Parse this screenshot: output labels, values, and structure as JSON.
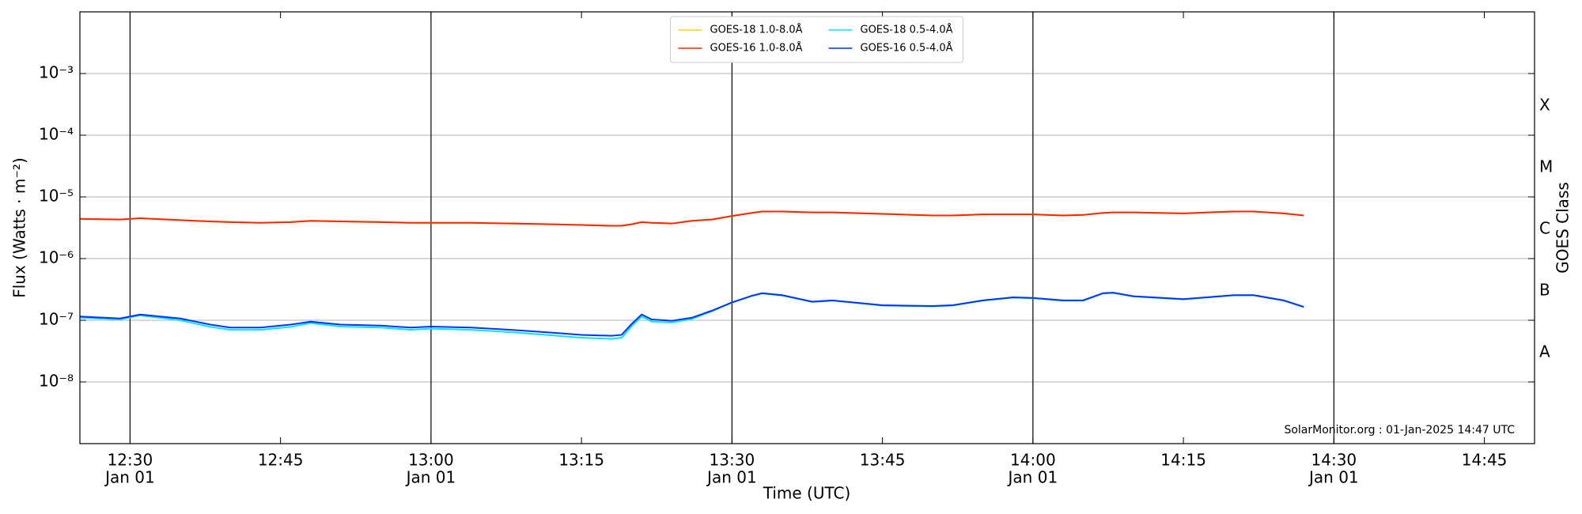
{
  "chart_data": {
    "type": "line",
    "xlabel": "Time (UTC)",
    "ylabel": "Flux (Watts · m⁻²)",
    "y2label": "GOES Class",
    "annotation": "SolarMonitor.org : 01-Jan-2025 14:47 UTC",
    "yscale": "log",
    "grid": true,
    "legend": "upper center",
    "xlim": [
      "12:25",
      "14:50"
    ],
    "xticks": [
      {
        "value": "12:30",
        "label": [
          "12:30",
          "Jan 01"
        ]
      },
      "12:45",
      {
        "value": "13:00",
        "label": [
          "13:00",
          "Jan 01"
        ]
      },
      "13:15",
      {
        "value": "13:30",
        "label": [
          "13:30",
          "Jan 01"
        ]
      },
      "13:45",
      {
        "value": "14:00",
        "label": [
          "14:00",
          "Jan 01"
        ]
      },
      "14:15",
      {
        "value": "14:30",
        "label": [
          "14:30",
          "Jan 01"
        ]
      },
      "14:45"
    ],
    "vlines": [
      "12:30",
      "13:00",
      "13:30",
      "14:00",
      "14:30"
    ],
    "ylim": [
      1e-09,
      0.01
    ],
    "yticks": [
      {
        "value": 1e-08,
        "label": "10⁻⁸"
      },
      {
        "value": 1e-07,
        "label": "10⁻⁷"
      },
      {
        "value": 1e-06,
        "label": "10⁻⁶"
      },
      {
        "value": 1e-05,
        "label": "10⁻⁵"
      },
      {
        "value": 0.0001,
        "label": "10⁻⁴"
      },
      {
        "value": 0.001,
        "label": "10⁻³"
      }
    ],
    "y2lim": [
      1e-09,
      0.01
    ],
    "y2ticks": [
      {
        "value": 3e-08,
        "label": "A"
      },
      {
        "value": 3e-07,
        "label": "B"
      },
      {
        "value": 3e-06,
        "label": "C"
      },
      {
        "value": 3e-05,
        "label": "M"
      },
      {
        "value": 0.0003,
        "label": "X"
      }
    ],
    "x": [
      "12:25",
      "12:29",
      "12:31",
      "12:35",
      "12:38",
      "12:40",
      "12:43",
      "12:46",
      "12:48",
      "12:51",
      "12:55",
      "12:58",
      "13:00",
      "13:04",
      "13:08",
      "13:12",
      "13:15",
      "13:18",
      "13:19",
      "13:20",
      "13:21",
      "13:22",
      "13:24",
      "13:26",
      "13:28",
      "13:30",
      "13:32",
      "13:33",
      "13:35",
      "13:38",
      "13:40",
      "13:45",
      "13:50",
      "13:52",
      "13:55",
      "13:58",
      "14:00",
      "14:03",
      "14:05",
      "14:07",
      "14:08",
      "14:10",
      "14:15",
      "14:20",
      "14:22",
      "14:25",
      "14:27"
    ],
    "series": [
      {
        "name": "GOES-18 1.0-8.0Å",
        "color": "#ffd700",
        "values": [
          4.4e-06,
          4.3e-06,
          4.5e-06,
          4.2e-06,
          4e-06,
          3.9e-06,
          3.8e-06,
          3.9e-06,
          4.1e-06,
          4e-06,
          3.9e-06,
          3.8e-06,
          3.8e-06,
          3.8e-06,
          3.7e-06,
          3.6e-06,
          3.5e-06,
          3.4e-06,
          3.4e-06,
          3.6e-06,
          3.9e-06,
          3.8e-06,
          3.7e-06,
          4.1e-06,
          4.3e-06,
          4.9e-06,
          5.5e-06,
          5.8e-06,
          5.8e-06,
          5.6e-06,
          5.6e-06,
          5.3e-06,
          5e-06,
          5e-06,
          5.2e-06,
          5.2e-06,
          5.2e-06,
          5e-06,
          5.1e-06,
          5.5e-06,
          5.6e-06,
          5.6e-06,
          5.4e-06,
          5.8e-06,
          5.8e-06,
          5.4e-06,
          5e-06
        ]
      },
      {
        "name": "GOES-16 1.0-8.0Å",
        "color": "#ff2400",
        "values": [
          4.4e-06,
          4.3e-06,
          4.5e-06,
          4.2e-06,
          4e-06,
          3.9e-06,
          3.8e-06,
          3.9e-06,
          4.1e-06,
          4e-06,
          3.9e-06,
          3.8e-06,
          3.8e-06,
          3.8e-06,
          3.7e-06,
          3.6e-06,
          3.5e-06,
          3.4e-06,
          3.4e-06,
          3.6e-06,
          3.9e-06,
          3.8e-06,
          3.7e-06,
          4.1e-06,
          4.3e-06,
          4.9e-06,
          5.5e-06,
          5.8e-06,
          5.8e-06,
          5.6e-06,
          5.6e-06,
          5.3e-06,
          5e-06,
          5e-06,
          5.2e-06,
          5.2e-06,
          5.2e-06,
          5e-06,
          5.1e-06,
          5.5e-06,
          5.6e-06,
          5.6e-06,
          5.4e-06,
          5.8e-06,
          5.8e-06,
          5.4e-06,
          5e-06
        ]
      },
      {
        "name": "GOES-18 0.5-4.0Å",
        "color": "#00e5ff",
        "values": [
          1.1e-07,
          1.03e-07,
          1.2e-07,
          1e-07,
          7.8e-08,
          7e-08,
          7e-08,
          7.8e-08,
          9e-08,
          7.9e-08,
          7.6e-08,
          7e-08,
          7.3e-08,
          7e-08,
          6.4e-08,
          5.7e-08,
          5.2e-08,
          5e-08,
          5.2e-08,
          8e-08,
          1.15e-07,
          9.5e-08,
          9.2e-08,
          1.05e-07,
          1.4e-07,
          1.93e-07,
          2.48e-07,
          2.72e-07,
          2.52e-07,
          1.98e-07,
          2.08e-07,
          1.73e-07,
          1.68e-07,
          1.73e-07,
          2.08e-07,
          2.33e-07,
          2.28e-07,
          2.08e-07,
          2.08e-07,
          2.72e-07,
          2.78e-07,
          2.43e-07,
          2.18e-07,
          2.53e-07,
          2.53e-07,
          2.08e-07,
          1.63e-07
        ]
      },
      {
        "name": "GOES-16 0.5-4.0Å",
        "color": "#0033ff",
        "values": [
          1.15e-07,
          1.07e-07,
          1.24e-07,
          1.07e-07,
          8.5e-08,
          7.6e-08,
          7.6e-08,
          8.5e-08,
          9.5e-08,
          8.5e-08,
          8.2e-08,
          7.6e-08,
          7.9e-08,
          7.6e-08,
          7e-08,
          6.3e-08,
          5.8e-08,
          5.6e-08,
          5.8e-08,
          8.7e-08,
          1.24e-07,
          1.03e-07,
          9.8e-08,
          1.1e-07,
          1.43e-07,
          1.95e-07,
          2.5e-07,
          2.75e-07,
          2.55e-07,
          2e-07,
          2.1e-07,
          1.75e-07,
          1.7e-07,
          1.75e-07,
          2.1e-07,
          2.35e-07,
          2.3e-07,
          2.1e-07,
          2.1e-07,
          2.75e-07,
          2.8e-07,
          2.45e-07,
          2.2e-07,
          2.55e-07,
          2.55e-07,
          2.1e-07,
          1.65e-07
        ]
      }
    ]
  }
}
